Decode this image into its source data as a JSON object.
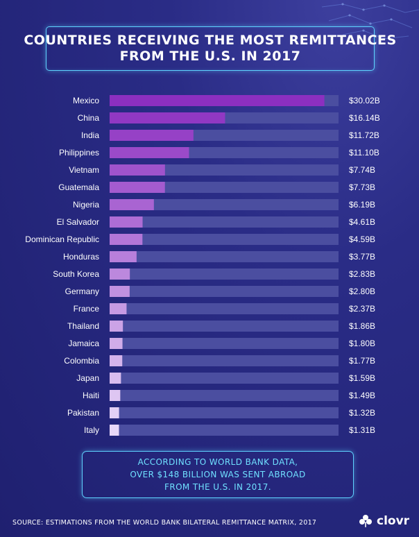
{
  "title": {
    "line1": "COUNTRIES RECEIVING THE MOST REMITTANCES",
    "line2": "FROM THE U.S. IN 2017"
  },
  "chart_data": {
    "type": "bar",
    "orientation": "horizontal",
    "title": "COUNTRIES RECEIVING THE MOST REMITTANCES FROM THE U.S. IN 2017",
    "xlabel": "",
    "ylabel": "",
    "xlim": [
      0,
      32
    ],
    "grid": false,
    "legend": "none",
    "categories": [
      "Mexico",
      "China",
      "India",
      "Philippines",
      "Vietnam",
      "Guatemala",
      "Nigeria",
      "El Salvador",
      "Dominican Republic",
      "Honduras",
      "South Korea",
      "Germany",
      "France",
      "Thailand",
      "Jamaica",
      "Colombia",
      "Japan",
      "Haiti",
      "Pakistan",
      "Italy"
    ],
    "values": [
      30.02,
      16.14,
      11.72,
      11.1,
      7.74,
      7.73,
      6.19,
      4.61,
      4.59,
      3.77,
      2.83,
      2.8,
      2.37,
      1.86,
      1.8,
      1.77,
      1.59,
      1.49,
      1.32,
      1.31
    ],
    "value_labels": [
      "$30.02B",
      "$16.14B",
      "$11.72B",
      "$11.10B",
      "$7.74B",
      "$7.73B",
      "$6.19B",
      "$4.61B",
      "$4.59B",
      "$3.77B",
      "$2.83B",
      "$2.80B",
      "$2.37B",
      "$1.86B",
      "$1.80B",
      "$1.77B",
      "$1.59B",
      "$1.49B",
      "$1.32B",
      "$1.31B"
    ],
    "colors": {
      "track": "#4b4ea0",
      "bar_start": "#8c2fc0",
      "bar_end": "#e8d8f8"
    }
  },
  "note": {
    "line1": "ACCORDING TO WORLD BANK DATA,",
    "line2": "OVER $148 BILLION WAS SENT ABROAD",
    "line3": "FROM THE U.S. IN 2017."
  },
  "source": "SOURCE: ESTIMATIONS FROM THE WORLD BANK BILATERAL REMITTANCE MATRIX, 2017",
  "logo": {
    "text": "clovr",
    "icon": "clover-icon"
  }
}
